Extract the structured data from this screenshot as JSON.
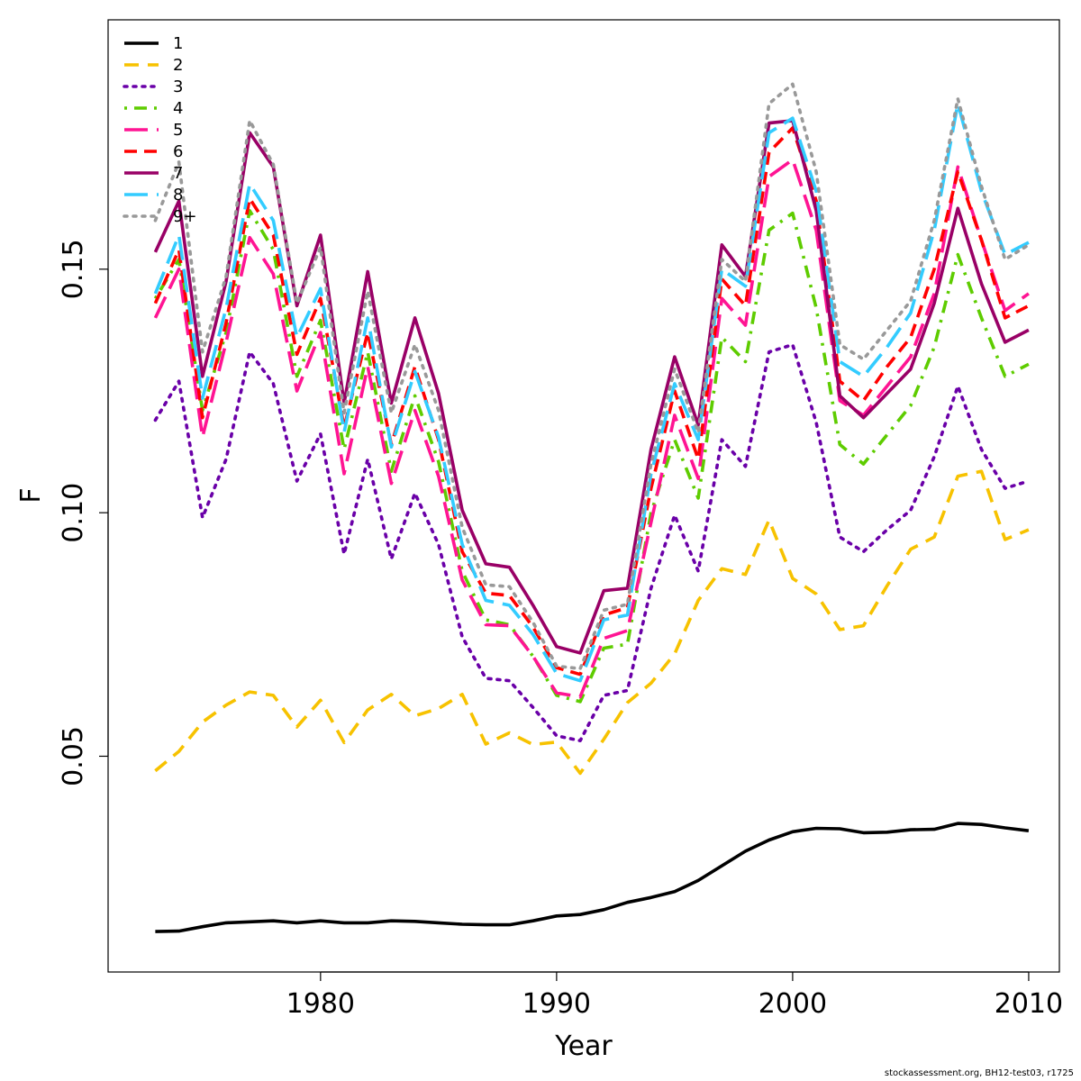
{
  "chart_data": {
    "type": "line",
    "xlabel": "Year",
    "ylabel": "F",
    "xlim": [
      1971.0,
      2011.3
    ],
    "ylim": [
      0.0057,
      0.2012
    ],
    "xticks": [
      1980,
      1990,
      2000,
      2010
    ],
    "yticks": [
      0.05,
      0.1,
      0.15
    ],
    "ytick_labels": [
      "0.05",
      "0.10",
      "0.15"
    ],
    "legend_position": "top-left",
    "x": [
      1973,
      1974,
      1975,
      1976,
      1977,
      1978,
      1979,
      1980,
      1981,
      1982,
      1983,
      1984,
      1985,
      1986,
      1987,
      1988,
      1989,
      1990,
      1991,
      1992,
      1993,
      1994,
      1995,
      1996,
      1997,
      1998,
      1999,
      2000,
      2001,
      2002,
      2003,
      2004,
      2005,
      2006,
      2007,
      2008,
      2009,
      2010
    ],
    "series": [
      {
        "name": "1",
        "color": "#000000",
        "dash": "solid",
        "values": [
          0.014,
          0.0141,
          0.015,
          0.0158,
          0.016,
          0.0162,
          0.0158,
          0.0162,
          0.0158,
          0.0158,
          0.0162,
          0.0161,
          0.0158,
          0.0155,
          0.0154,
          0.0154,
          0.0162,
          0.0172,
          0.0175,
          0.0185,
          0.02,
          0.021,
          0.0222,
          0.0245,
          0.0275,
          0.0305,
          0.0328,
          0.0345,
          0.0352,
          0.0351,
          0.0343,
          0.0344,
          0.0349,
          0.035,
          0.0362,
          0.036,
          0.0353,
          0.0347
        ]
      },
      {
        "name": "2",
        "color": "#f7c200",
        "dash": "long",
        "values": [
          0.047,
          0.051,
          0.057,
          0.0605,
          0.0632,
          0.0625,
          0.056,
          0.0615,
          0.0528,
          0.0595,
          0.0627,
          0.0583,
          0.0598,
          0.0627,
          0.0525,
          0.0548,
          0.0524,
          0.0529,
          0.0465,
          0.0535,
          0.061,
          0.065,
          0.071,
          0.082,
          0.0885,
          0.0873,
          0.0985,
          0.0865,
          0.0833,
          0.076,
          0.0768,
          0.085,
          0.0925,
          0.095,
          0.1075,
          0.1085,
          0.0945,
          0.0965
        ]
      },
      {
        "name": "3",
        "color": "#6a00a8",
        "dash": "dotted",
        "values": [
          0.119,
          0.127,
          0.099,
          0.111,
          0.133,
          0.1265,
          0.1065,
          0.1162,
          0.0915,
          0.111,
          0.0905,
          0.104,
          0.0935,
          0.0745,
          0.066,
          0.0655,
          0.06,
          0.0542,
          0.0532,
          0.0625,
          0.0635,
          0.0845,
          0.0995,
          0.088,
          0.115,
          0.1095,
          0.133,
          0.1345,
          0.1185,
          0.095,
          0.092,
          0.0965,
          0.1005,
          0.1115,
          0.126,
          0.113,
          0.105,
          0.1065
        ]
      },
      {
        "name": "4",
        "color": "#5ecc00",
        "dash": "dashdot",
        "values": [
          0.144,
          0.152,
          0.121,
          0.137,
          0.162,
          0.154,
          0.128,
          0.1395,
          0.113,
          0.133,
          0.1085,
          0.124,
          0.1105,
          0.088,
          0.078,
          0.077,
          0.0705,
          0.0625,
          0.0612,
          0.0722,
          0.073,
          0.1,
          0.115,
          0.103,
          0.136,
          0.131,
          0.158,
          0.1615,
          0.142,
          0.114,
          0.11,
          0.116,
          0.122,
          0.134,
          0.153,
          0.14,
          0.128,
          0.1305
        ]
      },
      {
        "name": "5",
        "color": "#ff1493",
        "dash": "longdash",
        "values": [
          0.14,
          0.15,
          0.1155,
          0.135,
          0.1565,
          0.149,
          0.125,
          0.137,
          0.108,
          0.13,
          0.106,
          0.121,
          0.1075,
          0.0862,
          0.077,
          0.0768,
          0.0705,
          0.063,
          0.0622,
          0.0742,
          0.0758,
          0.098,
          0.12,
          0.107,
          0.144,
          0.1385,
          0.169,
          0.1725,
          0.158,
          0.123,
          0.12,
          0.126,
          0.132,
          0.145,
          0.171,
          0.156,
          0.1415,
          0.145
        ]
      },
      {
        "name": "6",
        "color": "#ff0000",
        "dash": "dashed",
        "values": [
          0.143,
          0.154,
          0.1195,
          0.139,
          0.1645,
          0.157,
          0.1325,
          0.144,
          0.1175,
          0.137,
          0.114,
          0.13,
          0.115,
          0.092,
          0.0835,
          0.083,
          0.0765,
          0.0682,
          0.0668,
          0.079,
          0.0805,
          0.105,
          0.125,
          0.111,
          0.148,
          0.1425,
          0.174,
          0.179,
          0.164,
          0.127,
          0.123,
          0.13,
          0.136,
          0.15,
          0.17,
          0.156,
          0.14,
          0.1425
        ]
      },
      {
        "name": "7",
        "color": "#990066",
        "dash": "solid",
        "values": [
          0.1535,
          0.164,
          0.128,
          0.1475,
          0.178,
          0.171,
          0.1425,
          0.157,
          0.1225,
          0.1495,
          0.1225,
          0.14,
          0.1245,
          0.1005,
          0.0895,
          0.0888,
          0.081,
          0.0725,
          0.0712,
          0.084,
          0.0845,
          0.113,
          0.132,
          0.118,
          0.155,
          0.1485,
          0.18,
          0.1805,
          0.162,
          0.124,
          0.1195,
          0.1245,
          0.1295,
          0.143,
          0.1625,
          0.147,
          0.135,
          0.1375
        ]
      },
      {
        "name": "8",
        "color": "#33ccff",
        "dash": "longdash",
        "values": [
          0.145,
          0.157,
          0.1235,
          0.142,
          0.1675,
          0.16,
          0.136,
          0.146,
          0.1165,
          0.14,
          0.1135,
          0.129,
          0.1155,
          0.0935,
          0.082,
          0.081,
          0.075,
          0.067,
          0.0655,
          0.078,
          0.079,
          0.108,
          0.1265,
          0.115,
          0.15,
          0.1465,
          0.178,
          0.181,
          0.166,
          0.131,
          0.128,
          0.134,
          0.141,
          0.158,
          0.184,
          0.166,
          0.153,
          0.1555
        ]
      },
      {
        "name": "9+",
        "color": "#999999",
        "dash": "dotted",
        "values": [
          0.16,
          0.172,
          0.133,
          0.1485,
          0.1805,
          0.1715,
          0.143,
          0.1545,
          0.1205,
          0.1455,
          0.1205,
          0.1345,
          0.121,
          0.097,
          0.0852,
          0.0848,
          0.0775,
          0.0685,
          0.068,
          0.08,
          0.0812,
          0.11,
          0.1295,
          0.1165,
          0.152,
          0.1475,
          0.184,
          0.188,
          0.17,
          0.1345,
          0.1315,
          0.1375,
          0.1435,
          0.16,
          0.185,
          0.167,
          0.152,
          0.155
        ]
      }
    ]
  },
  "footer": "stockassessment.org, BH12-test03, r1725"
}
